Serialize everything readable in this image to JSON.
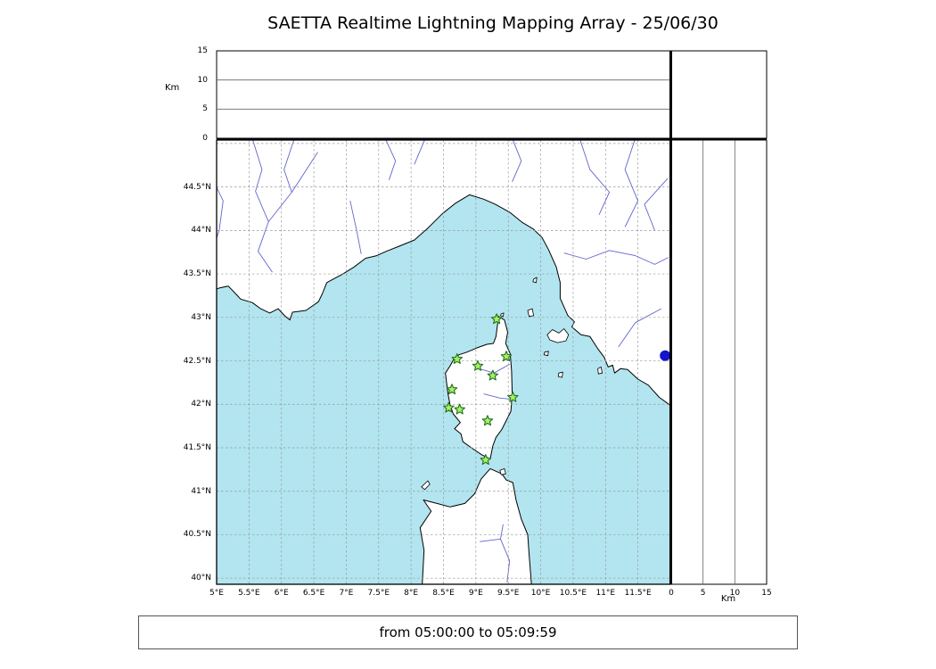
{
  "title": "SAETTA Realtime Lightning Mapping Array - 25/06/30",
  "footer_text": "from 05:00:00 to 05:09:59",
  "axes": {
    "km_label": "Km",
    "km_ticks": [
      0,
      5,
      10,
      15
    ],
    "km_gridlines": [
      5,
      10
    ],
    "lat_ticks": [
      40,
      40.5,
      41,
      41.5,
      42,
      42.5,
      43,
      43.5,
      44,
      44.5
    ],
    "lat_tick_labels": [
      "40°N",
      "40.5°N",
      "41°N",
      "41.5°N",
      "42°N",
      "42.5°N",
      "43°N",
      "43.5°N",
      "44°N",
      "44.5°N"
    ],
    "lon_ticks": [
      5,
      5.5,
      6,
      6.5,
      7,
      7.5,
      8,
      8.5,
      9,
      9.5,
      10,
      10.5,
      11,
      11.5
    ],
    "lon_tick_labels": [
      "5°E",
      "5.5°E",
      "6°E",
      "6.5°E",
      "7°E",
      "7.5°E",
      "8°E",
      "8.5°E",
      "9°E",
      "9.5°E",
      "10°E",
      "10.5°E",
      "11°E",
      "11.5°E"
    ]
  },
  "colors": {
    "sea": "#b2e5ef",
    "land": "#ffffff",
    "coast": "#000000",
    "river": "#6363cf",
    "grid": "#999999",
    "frame": "#000000",
    "panel_grid": "#666666",
    "station_fill": "#a6f25f",
    "station_edge": "#237023",
    "event_dot": "#1414cc"
  },
  "chart_data": {
    "type": "map",
    "title": "SAETTA Realtime Lightning Mapping Array",
    "date": "25/06/30",
    "time_window": {
      "from": "05:00:00",
      "to": "05:09:59"
    },
    "extent": {
      "lon_min": 5,
      "lon_max": 12,
      "lat_min": 39.93,
      "lat_max": 45.04
    },
    "grid_step_deg": 0.5,
    "altitude_axis_km": {
      "min": 0,
      "max": 15,
      "ticks": [
        0,
        5,
        10,
        15
      ]
    },
    "stations": [
      {
        "lon": 9.32,
        "lat": 42.98
      },
      {
        "lon": 8.71,
        "lat": 42.52
      },
      {
        "lon": 9.03,
        "lat": 42.44
      },
      {
        "lon": 9.47,
        "lat": 42.55
      },
      {
        "lon": 9.26,
        "lat": 42.33
      },
      {
        "lon": 8.63,
        "lat": 42.17
      },
      {
        "lon": 9.57,
        "lat": 42.08
      },
      {
        "lon": 8.58,
        "lat": 41.96
      },
      {
        "lon": 8.75,
        "lat": 41.94
      },
      {
        "lon": 9.18,
        "lat": 41.81
      },
      {
        "lon": 9.15,
        "lat": 41.36
      }
    ],
    "event_marker": {
      "lon": 11.92,
      "lat": 42.56
    },
    "coastlines": {
      "mainland": [
        [
          4.9,
          43.3
        ],
        [
          5.05,
          43.34
        ],
        [
          5.18,
          43.36
        ],
        [
          5.32,
          43.25
        ],
        [
          5.37,
          43.21
        ],
        [
          5.55,
          43.17
        ],
        [
          5.68,
          43.1
        ],
        [
          5.82,
          43.05
        ],
        [
          5.95,
          43.1
        ],
        [
          6.05,
          43.02
        ],
        [
          6.13,
          42.97
        ],
        [
          6.17,
          43.06
        ],
        [
          6.38,
          43.08
        ],
        [
          6.57,
          43.18
        ],
        [
          6.63,
          43.27
        ],
        [
          6.7,
          43.4
        ],
        [
          6.95,
          43.5
        ],
        [
          7.12,
          43.58
        ],
        [
          7.3,
          43.68
        ],
        [
          7.47,
          43.71
        ],
        [
          7.62,
          43.76
        ],
        [
          7.82,
          43.82
        ],
        [
          8.05,
          43.89
        ],
        [
          8.25,
          44.02
        ],
        [
          8.48,
          44.19
        ],
        [
          8.68,
          44.31
        ],
        [
          8.9,
          44.41
        ],
        [
          9.12,
          44.36
        ],
        [
          9.3,
          44.3
        ],
        [
          9.52,
          44.21
        ],
        [
          9.72,
          44.09
        ],
        [
          9.88,
          44.02
        ],
        [
          10.02,
          43.92
        ],
        [
          10.12,
          43.78
        ],
        [
          10.24,
          43.58
        ],
        [
          10.3,
          43.4
        ],
        [
          10.3,
          43.22
        ],
        [
          10.42,
          43.02
        ],
        [
          10.52,
          42.95
        ],
        [
          10.48,
          42.89
        ],
        [
          10.62,
          42.8
        ],
        [
          10.76,
          42.78
        ],
        [
          10.88,
          42.64
        ],
        [
          10.98,
          42.54
        ],
        [
          11.04,
          42.43
        ],
        [
          11.11,
          42.45
        ],
        [
          11.14,
          42.36
        ],
        [
          11.23,
          42.41
        ],
        [
          11.34,
          42.4
        ],
        [
          11.5,
          42.29
        ],
        [
          11.66,
          42.22
        ],
        [
          11.83,
          42.08
        ],
        [
          11.98,
          42.0
        ],
        [
          12.08,
          41.92
        ],
        [
          12.08,
          45.1
        ],
        [
          4.9,
          45.1
        ]
      ],
      "corsica": [
        [
          9.35,
          43.01
        ],
        [
          9.44,
          42.97
        ],
        [
          9.49,
          42.83
        ],
        [
          9.46,
          42.7
        ],
        [
          9.53,
          42.58
        ],
        [
          9.55,
          42.38
        ],
        [
          9.56,
          42.12
        ],
        [
          9.54,
          41.92
        ],
        [
          9.4,
          41.71
        ],
        [
          9.31,
          41.62
        ],
        [
          9.26,
          41.52
        ],
        [
          9.22,
          41.37
        ],
        [
          9.09,
          41.42
        ],
        [
          8.93,
          41.5
        ],
        [
          8.8,
          41.57
        ],
        [
          8.77,
          41.66
        ],
        [
          8.67,
          41.72
        ],
        [
          8.76,
          41.79
        ],
        [
          8.65,
          41.89
        ],
        [
          8.6,
          42.0
        ],
        [
          8.57,
          42.12
        ],
        [
          8.55,
          42.24
        ],
        [
          8.53,
          42.36
        ],
        [
          8.6,
          42.44
        ],
        [
          8.66,
          42.52
        ],
        [
          8.74,
          42.57
        ],
        [
          8.86,
          42.6
        ],
        [
          9.02,
          42.65
        ],
        [
          9.17,
          42.69
        ],
        [
          9.27,
          42.7
        ],
        [
          9.31,
          42.78
        ],
        [
          9.33,
          42.9
        ]
      ],
      "sardinia": [
        [
          9.22,
          41.26
        ],
        [
          9.4,
          41.2
        ],
        [
          9.47,
          41.13
        ],
        [
          9.57,
          41.1
        ],
        [
          9.62,
          40.9
        ],
        [
          9.7,
          40.68
        ],
        [
          9.8,
          40.5
        ],
        [
          9.82,
          40.28
        ],
        [
          9.86,
          39.9
        ],
        [
          8.17,
          39.9
        ],
        [
          8.2,
          40.32
        ],
        [
          8.14,
          40.58
        ],
        [
          8.31,
          40.77
        ],
        [
          8.19,
          40.9
        ],
        [
          8.4,
          40.86
        ],
        [
          8.6,
          40.82
        ],
        [
          8.83,
          40.86
        ],
        [
          8.98,
          40.97
        ],
        [
          9.08,
          41.14
        ]
      ],
      "islands": [
        [
          [
            10.1,
            42.8
          ],
          [
            10.18,
            42.86
          ],
          [
            10.28,
            42.82
          ],
          [
            10.36,
            42.87
          ],
          [
            10.43,
            42.8
          ],
          [
            10.39,
            42.73
          ],
          [
            10.26,
            42.71
          ],
          [
            10.14,
            42.74
          ]
        ],
        [
          [
            9.8,
            43.08
          ],
          [
            9.87,
            43.1
          ],
          [
            9.89,
            43.02
          ],
          [
            9.82,
            43.01
          ]
        ],
        [
          [
            9.89,
            43.44
          ],
          [
            9.94,
            43.46
          ],
          [
            9.93,
            43.4
          ],
          [
            9.88,
            43.41
          ]
        ],
        [
          [
            10.06,
            42.6
          ],
          [
            10.12,
            42.61
          ],
          [
            10.11,
            42.56
          ],
          [
            10.05,
            42.57
          ]
        ],
        [
          [
            10.28,
            42.36
          ],
          [
            10.34,
            42.37
          ],
          [
            10.33,
            42.31
          ],
          [
            10.27,
            42.32
          ]
        ],
        [
          [
            10.88,
            42.41
          ],
          [
            10.93,
            42.43
          ],
          [
            10.95,
            42.36
          ],
          [
            10.89,
            42.35
          ]
        ],
        [
          [
            8.21,
            41.02
          ],
          [
            8.29,
            41.08
          ],
          [
            8.26,
            41.12
          ],
          [
            8.16,
            41.05
          ]
        ],
        [
          [
            9.37,
            41.24
          ],
          [
            9.44,
            41.26
          ],
          [
            9.46,
            41.2
          ],
          [
            9.39,
            41.19
          ]
        ],
        [
          [
            9.39,
            43.04
          ],
          [
            9.43,
            43.05
          ],
          [
            9.42,
            43.01
          ],
          [
            9.38,
            43.02
          ]
        ]
      ]
    },
    "rivers": [
      [
        [
          4.92,
          44.62
        ],
        [
          5.1,
          44.34
        ],
        [
          5.04,
          44.0
        ],
        [
          4.94,
          43.78
        ]
      ],
      [
        [
          5.55,
          45.06
        ],
        [
          5.7,
          44.7
        ],
        [
          5.6,
          44.45
        ],
        [
          5.8,
          44.1
        ],
        [
          5.64,
          43.76
        ],
        [
          5.86,
          43.52
        ]
      ],
      [
        [
          6.2,
          45.06
        ],
        [
          6.04,
          44.7
        ],
        [
          6.16,
          44.44
        ],
        [
          5.8,
          44.1
        ]
      ],
      [
        [
          6.56,
          44.9
        ],
        [
          6.3,
          44.6
        ],
        [
          6.16,
          44.44
        ]
      ],
      [
        [
          7.06,
          44.34
        ],
        [
          7.16,
          44.0
        ],
        [
          7.23,
          43.73
        ]
      ],
      [
        [
          7.6,
          45.06
        ],
        [
          7.76,
          44.8
        ],
        [
          7.66,
          44.58
        ]
      ],
      [
        [
          8.22,
          45.06
        ],
        [
          8.05,
          44.76
        ]
      ],
      [
        [
          9.56,
          45.06
        ],
        [
          9.7,
          44.8
        ],
        [
          9.56,
          44.56
        ]
      ],
      [
        [
          10.6,
          45.06
        ],
        [
          10.76,
          44.7
        ],
        [
          11.06,
          44.44
        ],
        [
          10.9,
          44.18
        ]
      ],
      [
        [
          11.46,
          45.06
        ],
        [
          11.3,
          44.7
        ],
        [
          11.5,
          44.34
        ],
        [
          11.3,
          44.04
        ]
      ],
      [
        [
          11.96,
          44.6
        ],
        [
          11.6,
          44.3
        ],
        [
          11.76,
          44.0
        ]
      ],
      [
        [
          10.36,
          43.74
        ],
        [
          10.7,
          43.67
        ],
        [
          11.06,
          43.77
        ],
        [
          11.46,
          43.71
        ],
        [
          11.76,
          43.61
        ],
        [
          11.97,
          43.69
        ]
      ],
      [
        [
          11.2,
          42.66
        ],
        [
          11.46,
          42.94
        ],
        [
          11.86,
          43.1
        ]
      ],
      [
        [
          9.48,
          39.95
        ],
        [
          9.52,
          40.2
        ],
        [
          9.38,
          40.45
        ],
        [
          9.42,
          40.62
        ]
      ],
      [
        [
          9.38,
          40.45
        ],
        [
          9.06,
          40.42
        ]
      ],
      [
        [
          9.0,
          42.42
        ],
        [
          9.28,
          42.36
        ],
        [
          9.52,
          42.46
        ]
      ],
      [
        [
          9.12,
          42.12
        ],
        [
          9.38,
          42.07
        ],
        [
          9.55,
          42.06
        ]
      ]
    ]
  }
}
